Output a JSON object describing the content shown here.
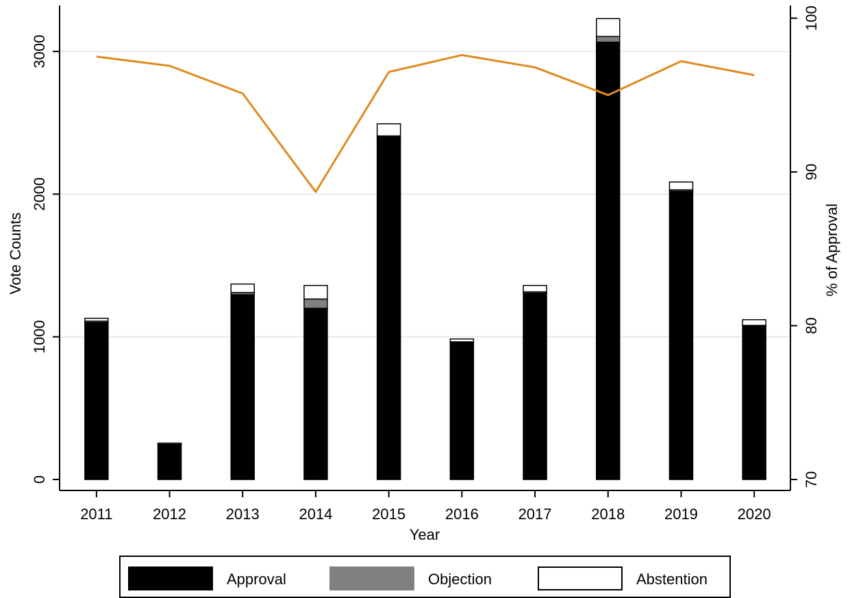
{
  "chart_data": {
    "type": "bar",
    "stacked": true,
    "categories": [
      "2011",
      "2012",
      "2013",
      "2014",
      "2015",
      "2016",
      "2017",
      "2018",
      "2019",
      "2020"
    ],
    "series": [
      {
        "name": "Approval",
        "color": "#000000",
        "values": [
          1100,
          245,
          1295,
          1200,
          2400,
          960,
          1305,
          3065,
          2020,
          1075
        ]
      },
      {
        "name": "Objection",
        "color": "#808080",
        "values": [
          10,
          2,
          15,
          65,
          8,
          5,
          10,
          40,
          10,
          5
        ]
      },
      {
        "name": "Abstention",
        "color": "#ffffff",
        "values": [
          20,
          8,
          60,
          95,
          85,
          20,
          45,
          125,
          55,
          40
        ]
      }
    ],
    "line": {
      "color": "#e08a1e",
      "axis": "right",
      "values": [
        97.5,
        96.9,
        95.1,
        88.7,
        96.5,
        97.6,
        96.8,
        95.0,
        97.2,
        96.3
      ]
    },
    "xlabel": "Year",
    "ylabel": "Vote Counts",
    "y2label": "% of Approval",
    "ylim": [
      0,
      3300
    ],
    "yticks": [
      "0",
      "1000",
      "2000",
      "3000"
    ],
    "y2lim": [
      70,
      101
    ],
    "y2ticks": [
      "70",
      "80",
      "90",
      "100"
    ],
    "grid": true,
    "legend_position": "bottom"
  }
}
